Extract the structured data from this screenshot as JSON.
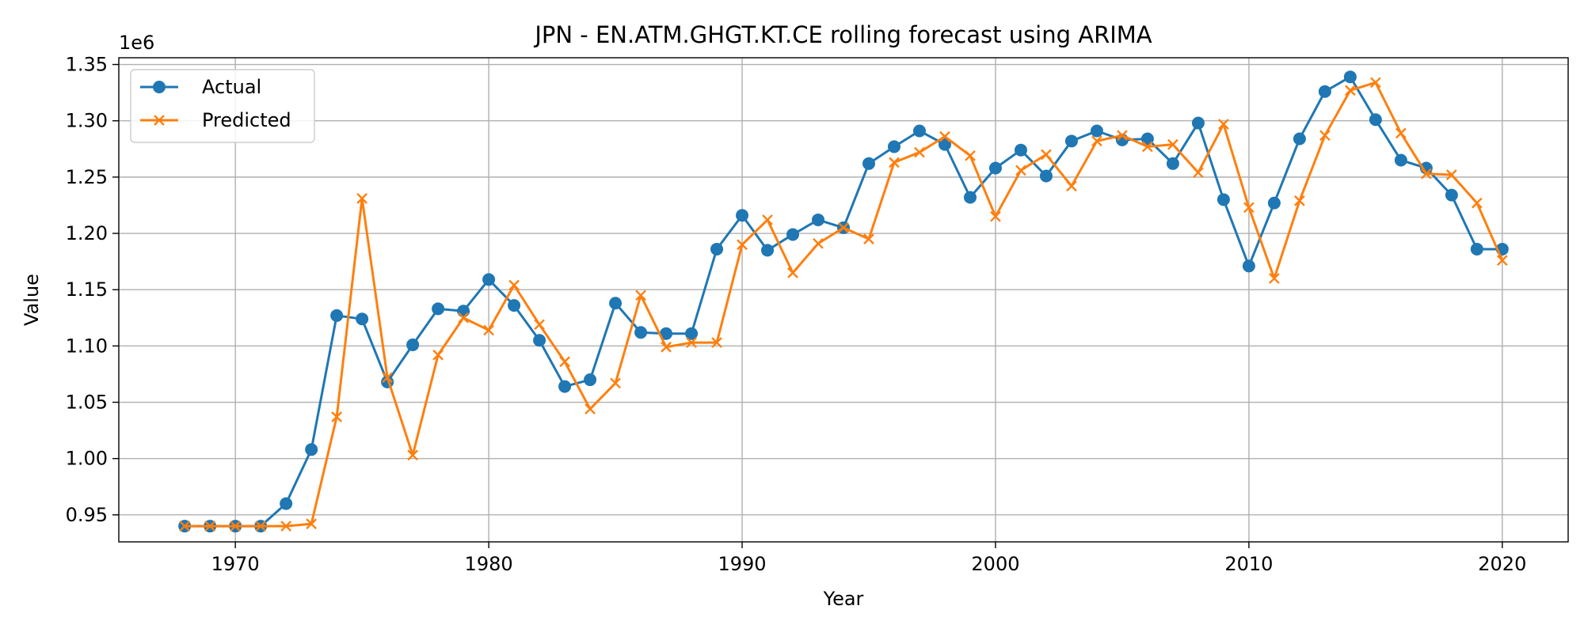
{
  "chart_data": {
    "type": "line",
    "title": "JPN - EN.ATM.GHGT.KT.CE rolling forecast using ARIMA",
    "xlabel": "Year",
    "ylabel": "Value",
    "y_offset_label": "1e6",
    "xlim": [
      1965.4,
      2022.6
    ],
    "ylim": [
      0.926,
      1.356
    ],
    "x_ticks": [
      1970,
      1980,
      1990,
      2000,
      2010,
      2020
    ],
    "x_tick_labels": [
      "1970",
      "1980",
      "1990",
      "2000",
      "2010",
      "2020"
    ],
    "y_ticks": [
      0.95,
      1.0,
      1.05,
      1.1,
      1.15,
      1.2,
      1.25,
      1.3,
      1.35
    ],
    "y_tick_labels": [
      "0.95",
      "1.00",
      "1.05",
      "1.10",
      "1.15",
      "1.20",
      "1.25",
      "1.30",
      "1.35"
    ],
    "grid": true,
    "legend_position": "top-left",
    "x": [
      1968,
      1969,
      1970,
      1971,
      1972,
      1973,
      1974,
      1975,
      1976,
      1977,
      1978,
      1979,
      1980,
      1981,
      1982,
      1983,
      1984,
      1985,
      1986,
      1987,
      1988,
      1989,
      1990,
      1991,
      1992,
      1993,
      1994,
      1995,
      1996,
      1997,
      1998,
      1999,
      2000,
      2001,
      2002,
      2003,
      2004,
      2005,
      2006,
      2007,
      2008,
      2009,
      2010,
      2011,
      2012,
      2013,
      2014,
      2015,
      2016,
      2017,
      2018,
      2019,
      2020
    ],
    "series": [
      {
        "name": "Actual",
        "color": "#1f77b4",
        "marker": "circle",
        "values": [
          0.94,
          0.94,
          0.94,
          0.94,
          0.96,
          1.008,
          1.127,
          1.124,
          1.068,
          1.101,
          1.133,
          1.131,
          1.159,
          1.136,
          1.105,
          1.064,
          1.07,
          1.138,
          1.112,
          1.111,
          1.111,
          1.186,
          1.216,
          1.185,
          1.199,
          1.212,
          1.205,
          1.262,
          1.277,
          1.291,
          1.279,
          1.232,
          1.258,
          1.274,
          1.251,
          1.282,
          1.291,
          1.283,
          1.284,
          1.262,
          1.298,
          1.23,
          1.171,
          1.227,
          1.284,
          1.326,
          1.339,
          1.301,
          1.265,
          1.258,
          1.234,
          1.186,
          1.186
        ]
      },
      {
        "name": "Predicted",
        "color": "#ff7f0e",
        "marker": "x",
        "values": [
          0.94,
          0.94,
          0.94,
          0.94,
          0.94,
          0.942,
          1.037,
          1.231,
          1.072,
          1.003,
          1.092,
          1.125,
          1.114,
          1.154,
          1.119,
          1.086,
          1.044,
          1.067,
          1.145,
          1.099,
          1.103,
          1.103,
          1.19,
          1.212,
          1.165,
          1.191,
          1.205,
          1.195,
          1.263,
          1.272,
          1.286,
          1.269,
          1.215,
          1.256,
          1.27,
          1.242,
          1.282,
          1.287,
          1.277,
          1.279,
          1.254,
          1.297,
          1.223,
          1.16,
          1.229,
          1.287,
          1.327,
          1.334,
          1.289,
          1.253,
          1.252,
          1.227,
          1.176
        ]
      }
    ]
  }
}
